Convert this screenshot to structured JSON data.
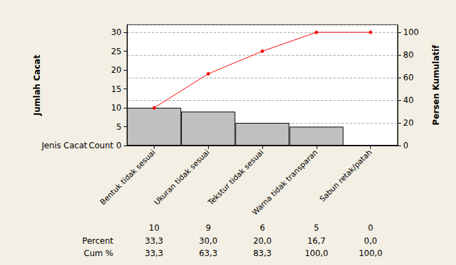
{
  "chart_data": {
    "type": "bar",
    "x_label": "Jenis Cacat",
    "y_label": "Jumlah Cacat",
    "y2_label": "Persen Kumulatif",
    "categories": [
      "Bentuk tidak sesuai",
      "Ukuran tidak sesuai",
      "Tekstur tidak sesuai",
      "Warna tidak transparan",
      "Sabun retak/patah"
    ],
    "series": [
      {
        "type": "bar",
        "color": "#c0c0c0",
        "values": [
          10,
          9,
          6,
          5,
          0
        ]
      },
      {
        "type": "line",
        "color": "#ff0000",
        "marker": "circle",
        "axis": "y2",
        "values": [
          33.3,
          63.3,
          83.3,
          100,
          100
        ]
      }
    ],
    "ylim": [
      0,
      32
    ],
    "yticks": [
      0,
      5,
      10,
      15,
      20,
      25,
      30
    ],
    "y2lim": [
      0,
      106.7
    ],
    "y2ticks": [
      0,
      20,
      40,
      60,
      80,
      100
    ],
    "grid": true,
    "table": {
      "rows": [
        {
          "label": "Count",
          "values": [
            10,
            9,
            6,
            5,
            0
          ]
        },
        {
          "label": "Percent",
          "values": [
            33.3,
            30.0,
            20.0,
            16.7,
            0.0
          ],
          "value_labels": [
            "33,3",
            "30,0",
            "20,0",
            "16,7",
            "0,0"
          ]
        },
        {
          "label": "Cum %",
          "values": [
            33.3,
            63.3,
            83.3,
            100.0,
            100.0
          ],
          "value_labels": [
            "33,3",
            "63,3",
            "83,3",
            "100,0",
            "100,0"
          ]
        }
      ]
    }
  }
}
